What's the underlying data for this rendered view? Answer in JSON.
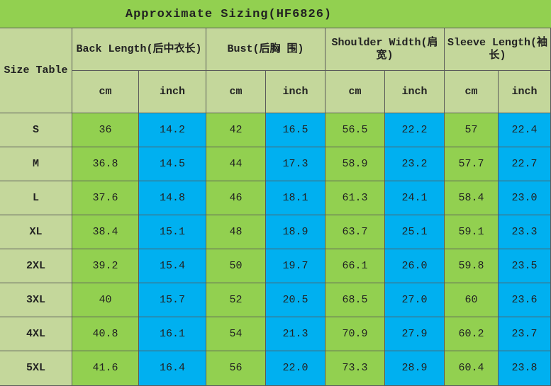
{
  "title": "Approximate Sizing(HF6826)",
  "table": {
    "corner": "Size Table",
    "groups": [
      "Back Length(后中衣长)",
      "Bust(后胸 围)",
      "Shoulder Width(肩宽)",
      "Sleeve Length(袖长)"
    ],
    "units": [
      "cm",
      "inch",
      "cm",
      "inch",
      "cm",
      "inch",
      "cm",
      "inch"
    ],
    "rows": [
      [
        "S",
        "36",
        "14.2",
        "42",
        "16.5",
        "56.5",
        "22.2",
        "57",
        "22.4"
      ],
      [
        "M",
        "36.8",
        "14.5",
        "44",
        "17.3",
        "58.9",
        "23.2",
        "57.7",
        "22.7"
      ],
      [
        "L",
        "37.6",
        "14.8",
        "46",
        "18.1",
        "61.3",
        "24.1",
        "58.4",
        "23.0"
      ],
      [
        "XL",
        "38.4",
        "15.1",
        "48",
        "18.9",
        "63.7",
        "25.1",
        "59.1",
        "23.3"
      ],
      [
        "2XL",
        "39.2",
        "15.4",
        "50",
        "19.7",
        "66.1",
        "26.0",
        "59.8",
        "23.5"
      ],
      [
        "3XL",
        "40",
        "15.7",
        "52",
        "20.5",
        "68.5",
        "27.0",
        "60",
        "23.6"
      ],
      [
        "4XL",
        "40.8",
        "16.1",
        "54",
        "21.3",
        "70.9",
        "27.9",
        "60.2",
        "23.7"
      ],
      [
        "5XL",
        "41.6",
        "16.4",
        "56",
        "22.0",
        "73.3",
        "28.9",
        "60.4",
        "23.8"
      ]
    ]
  }
}
